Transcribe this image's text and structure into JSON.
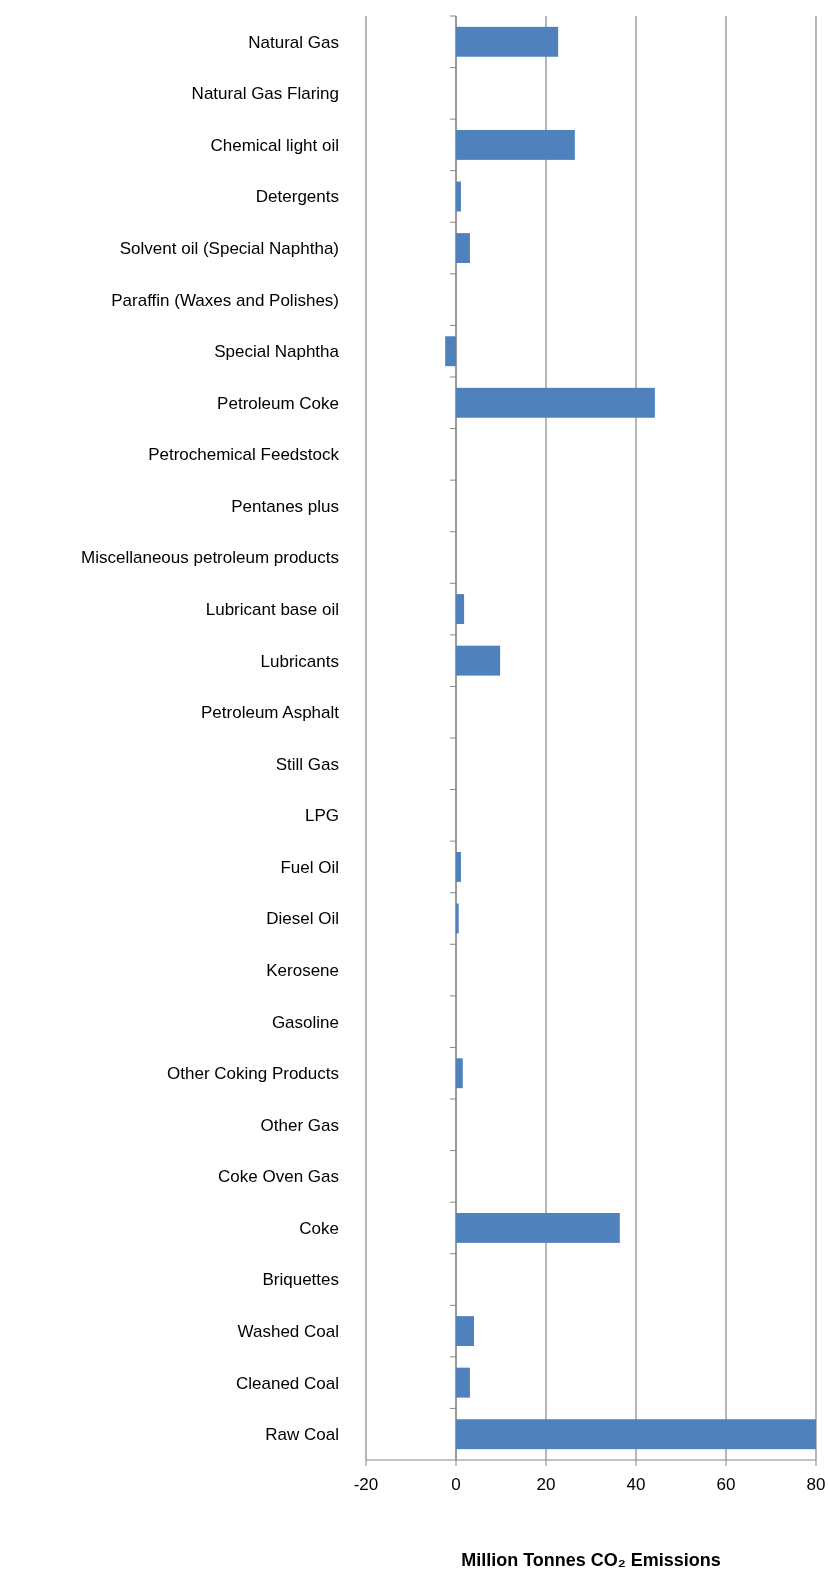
{
  "chart_data": {
    "type": "bar",
    "orientation": "horizontal",
    "xlabel": "Million Tonnes CO₂ Emissions",
    "categories": [
      "Natural Gas",
      "Natural Gas Flaring",
      "Chemical light oil",
      "Detergents",
      "Solvent oil (Special Naphtha)",
      "Paraffin (Waxes and Polishes)",
      "Special Naphtha",
      "Petroleum Coke",
      "Petrochemical Feedstock",
      "Pentanes plus",
      "Miscellaneous petroleum products",
      "Lubricant base oil",
      "Lubricants",
      "Petroleum Asphalt",
      "Still Gas",
      "LPG",
      "Fuel Oil",
      "Diesel Oil",
      "Kerosene",
      "Gasoline",
      "Other Coking  Products",
      "Other Gas",
      "Coke Oven Gas",
      "Coke",
      "Briquettes",
      "Washed Coal",
      "Cleaned Coal",
      "Raw Coal"
    ],
    "values": [
      22.7,
      0,
      26.4,
      1.1,
      3.1,
      0,
      -2.4,
      44.2,
      0,
      0,
      0,
      1.8,
      9.8,
      0,
      0,
      0,
      1.1,
      0.6,
      0,
      0,
      1.5,
      0,
      0,
      36.4,
      0,
      4,
      3.1,
      80
    ],
    "color": "#4f81bd",
    "xlim": [
      -20,
      80
    ],
    "xticks": [
      -20,
      0,
      20,
      40,
      60,
      80
    ],
    "grid": "x"
  }
}
